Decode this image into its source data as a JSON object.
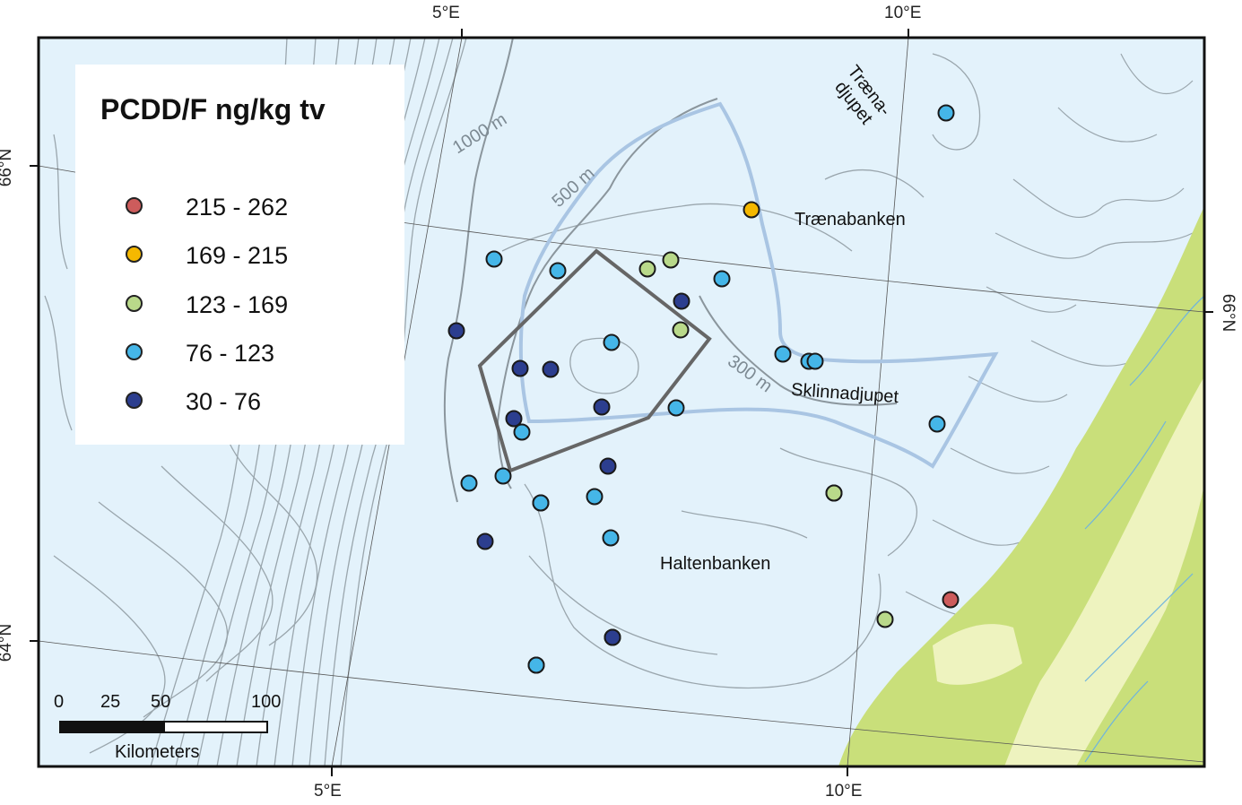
{
  "legend": {
    "title": "PCDD/F ng/kg tv",
    "classes": [
      {
        "label": "215 - 262",
        "color": "#cd5c5c"
      },
      {
        "label": "169 - 215",
        "color": "#f5b800"
      },
      {
        "label": "123 - 169",
        "color": "#b9d98a"
      },
      {
        "label": "76 - 123",
        "color": "#45b6e8"
      },
      {
        "label": "30 - 76",
        "color": "#2c3e8f"
      }
    ]
  },
  "graticule": {
    "top_lon": [
      "5°E",
      "10°E"
    ],
    "bottom_lon": [
      "5°E",
      "10°E"
    ],
    "left_lat": [
      "66°N",
      "64°N"
    ],
    "right_lat": [
      "66°N"
    ]
  },
  "place_names": {
    "traenadjupet_line1": "Træna-",
    "traenadjupet_line2": "djupet",
    "traenabanken": "Trænabanken",
    "sklinnadjupet": "Sklinnadjupet",
    "haltenbanken": "Haltenbanken"
  },
  "depth_labels": {
    "d1000": "1000 m",
    "d500": "500 m",
    "d300": "300 m"
  },
  "scale_bar": {
    "ticks": [
      "0",
      "25",
      "50",
      "100"
    ],
    "units": "Kilometers"
  },
  "colors": {
    "sea": "#e3f2fb",
    "land_green": "#c9df7a",
    "land_light": "#eef3bf",
    "contour": "#9aa6ad",
    "area_outline": "#aac8e6",
    "box_outline": "#666666"
  },
  "samples": [
    {
      "cls": 3
    },
    {
      "cls": 3
    },
    {
      "cls": 2
    },
    {
      "cls": 3
    },
    {
      "cls": 4
    },
    {
      "cls": 2
    },
    {
      "cls": 1
    },
    {
      "cls": 3
    },
    {
      "cls": 4
    },
    {
      "cls": 4
    },
    {
      "cls": 3
    },
    {
      "cls": 2
    },
    {
      "cls": 3
    },
    {
      "cls": 3
    },
    {
      "cls": 3
    },
    {
      "cls": 4
    },
    {
      "cls": 4
    },
    {
      "cls": 3
    },
    {
      "cls": 4
    },
    {
      "cls": 3
    },
    {
      "cls": 4
    },
    {
      "cls": 3
    },
    {
      "cls": 3
    },
    {
      "cls": 3
    },
    {
      "cls": 4
    },
    {
      "cls": 3
    },
    {
      "cls": 3
    },
    {
      "cls": 3
    },
    {
      "cls": 4
    },
    {
      "cls": 3
    },
    {
      "cls": 2
    },
    {
      "cls": 4
    },
    {
      "cls": 3
    },
    {
      "cls": 0
    },
    {
      "cls": 2
    },
    {
      "cls": 3
    },
    {
      "cls": 2
    }
  ]
}
